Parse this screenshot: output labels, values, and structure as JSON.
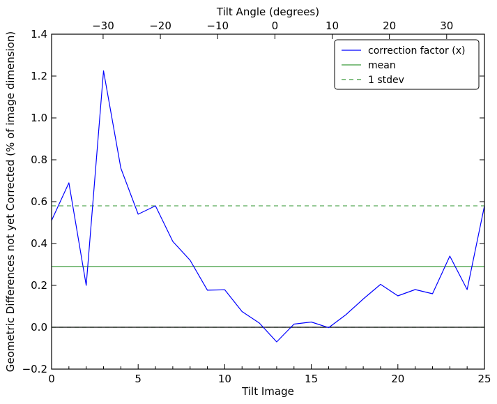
{
  "chart_data": {
    "type": "line",
    "xlabel": "Tilt Image",
    "ylabel": "Geometric Differences not yet Corrected (% of image dimension)",
    "x2label": "Tilt Angle (degrees)",
    "xlim": [
      0,
      25
    ],
    "ylim": [
      -0.2,
      1.4
    ],
    "x_ticks": [
      "0",
      "5",
      "10",
      "15",
      "20",
      "25"
    ],
    "y_ticks": [
      "−0.2",
      "0.0",
      "0.2",
      "0.4",
      "0.6",
      "0.8",
      "1.0",
      "1.2",
      "1.4"
    ],
    "x2_ticks": [
      "−30",
      "−20",
      "−10",
      "0",
      "10",
      "20",
      "30"
    ],
    "x2_tick_values": [
      -30,
      -20,
      -10,
      0,
      10,
      20,
      30
    ],
    "x2_range": [
      -39.0,
      36.6
    ],
    "grid": false,
    "legend_position": "top-right",
    "series": [
      {
        "name": "correction factor (x)",
        "color": "#0000ff",
        "style": "solid",
        "x": [
          0,
          1,
          2,
          3,
          4,
          5,
          6,
          7,
          8,
          9,
          10,
          11,
          12,
          13,
          14,
          15,
          16,
          17,
          18,
          19,
          20,
          21,
          22,
          23,
          24,
          25
        ],
        "y": [
          0.51,
          0.69,
          0.2,
          1.225,
          0.76,
          0.54,
          0.58,
          0.41,
          0.32,
          0.177,
          0.179,
          0.075,
          0.02,
          -0.07,
          0.015,
          0.025,
          -0.002,
          0.06,
          0.135,
          0.205,
          0.15,
          0.18,
          0.16,
          0.34,
          0.18,
          0.58
        ]
      },
      {
        "name": "mean",
        "color": "#3a9a3a",
        "style": "solid",
        "value": 0.29
      },
      {
        "name": "1 stdev",
        "color": "#3a9a3a",
        "style": "dashed",
        "values": [
          0.58,
          0.0
        ]
      }
    ],
    "zero_line": {
      "value": 0.0,
      "color": "#000000"
    }
  }
}
